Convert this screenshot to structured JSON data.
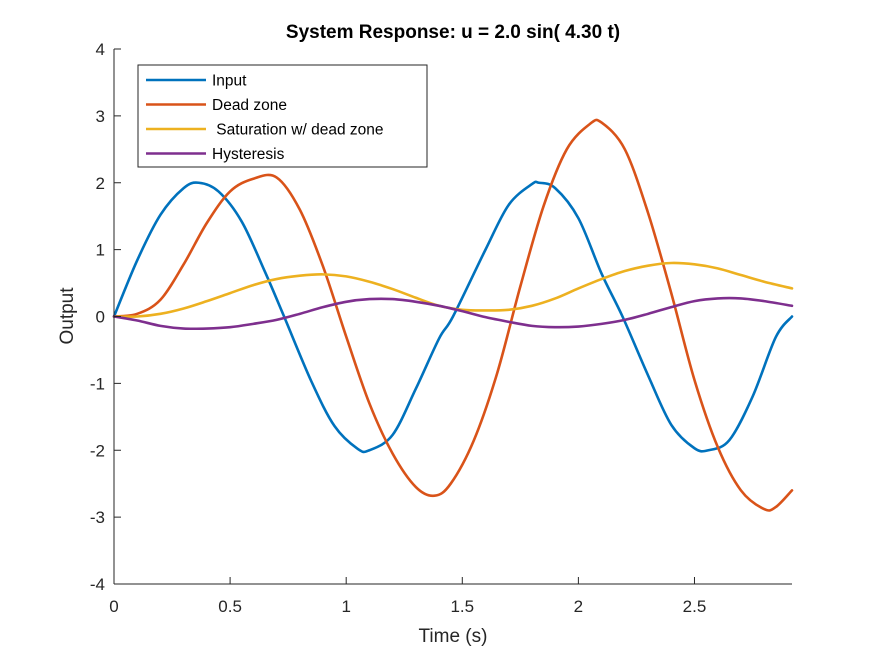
{
  "chart_data": {
    "type": "line",
    "title": "System Response: u = 2.0 sin( 4.30 t)",
    "xlabel": "Time (s)",
    "ylabel": "Output",
    "xlim": [
      0,
      2.92
    ],
    "ylim": [
      -4,
      4
    ],
    "xticks": [
      0,
      0.5,
      1,
      1.5,
      2,
      2.5
    ],
    "xtick_labels": [
      "0",
      "0.5",
      "1",
      "1.5",
      "2",
      "2.5"
    ],
    "yticks": [
      -4,
      -3,
      -2,
      -1,
      0,
      1,
      2,
      3,
      4
    ],
    "ytick_labels": [
      "-4",
      "-3",
      "-2",
      "-1",
      "0",
      "1",
      "2",
      "3",
      "4"
    ],
    "grid": false,
    "legend_position": "top-left",
    "series": [
      {
        "name": "Input",
        "color": "#0072BD",
        "x": [
          0,
          0.1,
          0.2,
          0.3,
          0.365,
          0.45,
          0.55,
          0.65,
          0.73,
          0.85,
          0.95,
          1.05,
          1.1,
          1.2,
          1.3,
          1.4,
          1.46,
          1.6,
          1.7,
          1.8,
          1.83,
          1.9,
          2.0,
          2.1,
          2.19,
          2.3,
          2.4,
          2.5,
          2.56,
          2.65,
          2.75,
          2.85,
          2.92
        ],
        "y": [
          0,
          0.84,
          1.52,
          1.92,
          2.0,
          1.87,
          1.42,
          0.67,
          0.02,
          -0.97,
          -1.64,
          -1.98,
          -2.0,
          -1.77,
          -1.08,
          -0.33,
          0.0,
          1.0,
          1.67,
          1.98,
          2.0,
          1.92,
          1.47,
          0.64,
          0.0,
          -0.88,
          -1.62,
          -1.97,
          -2.0,
          -1.85,
          -1.2,
          -0.31,
          0.0
        ]
      },
      {
        "name": "Dead zone",
        "color": "#D95319",
        "x": [
          0,
          0.1,
          0.2,
          0.3,
          0.4,
          0.5,
          0.6,
          0.7,
          0.8,
          0.9,
          1.0,
          1.1,
          1.2,
          1.3,
          1.38,
          1.45,
          1.55,
          1.65,
          1.75,
          1.85,
          1.95,
          2.05,
          2.1,
          2.2,
          2.3,
          2.4,
          2.5,
          2.6,
          2.7,
          2.8,
          2.85,
          2.92
        ],
        "y": [
          0,
          0.04,
          0.25,
          0.78,
          1.4,
          1.87,
          2.06,
          2.08,
          1.6,
          0.75,
          -0.3,
          -1.3,
          -2.05,
          -2.55,
          -2.68,
          -2.5,
          -1.85,
          -0.85,
          0.45,
          1.65,
          2.5,
          2.88,
          2.9,
          2.5,
          1.55,
          0.35,
          -0.95,
          -1.95,
          -2.6,
          -2.88,
          -2.85,
          -2.6
        ]
      },
      {
        "name": " Saturation w/ dead zone",
        "color": "#EDB120",
        "x": [
          0,
          0.1,
          0.2,
          0.3,
          0.4,
          0.5,
          0.6,
          0.7,
          0.8,
          0.9,
          1.0,
          1.1,
          1.2,
          1.3,
          1.4,
          1.5,
          1.6,
          1.7,
          1.8,
          1.9,
          2.0,
          2.1,
          2.2,
          2.3,
          2.4,
          2.5,
          2.6,
          2.7,
          2.8,
          2.92
        ],
        "y": [
          0,
          0.0,
          0.04,
          0.12,
          0.23,
          0.35,
          0.47,
          0.56,
          0.61,
          0.63,
          0.6,
          0.52,
          0.41,
          0.28,
          0.16,
          0.1,
          0.09,
          0.1,
          0.16,
          0.27,
          0.42,
          0.56,
          0.68,
          0.76,
          0.8,
          0.78,
          0.72,
          0.62,
          0.52,
          0.42
        ]
      },
      {
        "name": "Hysteresis",
        "color": "#7E2F8E",
        "x": [
          0,
          0.1,
          0.2,
          0.3,
          0.4,
          0.5,
          0.6,
          0.7,
          0.8,
          0.9,
          1.0,
          1.1,
          1.2,
          1.3,
          1.4,
          1.5,
          1.6,
          1.7,
          1.8,
          1.9,
          2.0,
          2.1,
          2.2,
          2.3,
          2.4,
          2.5,
          2.6,
          2.7,
          2.8,
          2.92
        ],
        "y": [
          0,
          -0.06,
          -0.14,
          -0.18,
          -0.18,
          -0.16,
          -0.11,
          -0.05,
          0.04,
          0.14,
          0.22,
          0.26,
          0.26,
          0.22,
          0.16,
          0.08,
          -0.01,
          -0.08,
          -0.14,
          -0.16,
          -0.15,
          -0.11,
          -0.05,
          0.04,
          0.14,
          0.23,
          0.27,
          0.27,
          0.23,
          0.16
        ]
      }
    ]
  }
}
